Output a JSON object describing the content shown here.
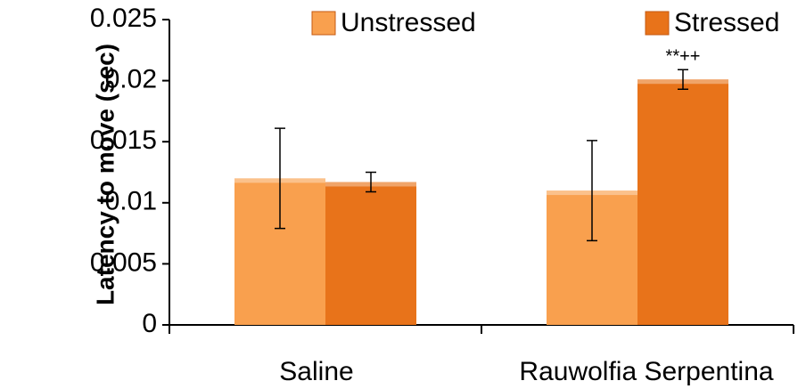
{
  "chart_data": {
    "type": "bar",
    "y_label": "Latency to move (sec)",
    "categories": [
      "Saline",
      "Rauwolfia Serpentina"
    ],
    "series": [
      {
        "name": "Unstressed",
        "color": "#f9a04e",
        "values": [
          0.012,
          0.011
        ],
        "errors": [
          0.0041,
          0.0041
        ]
      },
      {
        "name": "Stressed",
        "color": "#e8731a",
        "values": [
          0.0117,
          0.0201
        ],
        "errors": [
          0.0008,
          0.0008
        ]
      }
    ],
    "ylim": [
      0,
      0.025
    ],
    "yticks": [
      0,
      0.005,
      0.01,
      0.015,
      0.02,
      0.025
    ],
    "annotations": [
      {
        "text": "**++",
        "category": 1,
        "series": 1
      }
    ],
    "grid": false,
    "legend": "top"
  }
}
